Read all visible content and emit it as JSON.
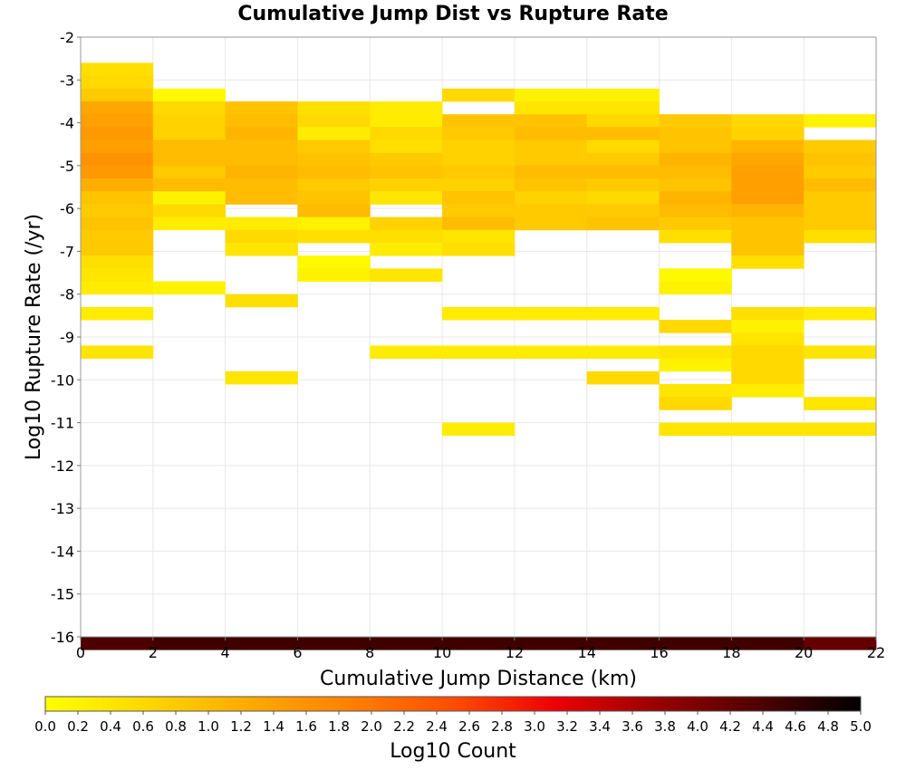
{
  "chart_data": {
    "type": "heatmap",
    "title": "Cumulative Jump Dist vs Rupture Rate",
    "xlabel": "Cumulative Jump Distance (km)",
    "ylabel": "Log10 Rupture Rate (/yr)",
    "xlim": [
      0,
      22
    ],
    "ylim": [
      -16,
      -2
    ],
    "x_ticks": [
      "0",
      "2",
      "4",
      "6",
      "8",
      "10",
      "12",
      "14",
      "16",
      "18",
      "20",
      "22"
    ],
    "y_ticks": [
      "-2",
      "-3",
      "-4",
      "-5",
      "-6",
      "-7",
      "-8",
      "-9",
      "-10",
      "-11",
      "-12",
      "-13",
      "-14",
      "-15",
      "-16"
    ],
    "x_bin_width": 2,
    "y_bin_height": 0.3,
    "grid": true,
    "colorbar": {
      "label": "Log10 Count",
      "range": [
        0,
        5
      ],
      "ticks": [
        "0.0",
        "0.2",
        "0.4",
        "0.6",
        "0.8",
        "1.0",
        "1.2",
        "1.4",
        "1.6",
        "1.8",
        "2.0",
        "2.2",
        "2.4",
        "2.6",
        "2.8",
        "3.0",
        "3.2",
        "3.4",
        "3.6",
        "3.8",
        "4.0",
        "4.2",
        "4.4",
        "4.6",
        "4.8",
        "5.0"
      ],
      "colors": [
        "#ffff00",
        "#ffd700",
        "#ffaa00",
        "#ff8000",
        "#ff4d00",
        "#ee0000",
        "#990000",
        "#500000",
        "#000000"
      ],
      "placement": "bottom"
    },
    "columns": [
      {
        "x": 0,
        "cells": [
          [
            -2.75,
            0.5
          ],
          [
            -3.05,
            0.6
          ],
          [
            -3.35,
            0.8
          ],
          [
            -3.65,
            1.3
          ],
          [
            -3.95,
            1.4
          ],
          [
            -4.25,
            1.5
          ],
          [
            -4.55,
            1.4
          ],
          [
            -4.85,
            1.6
          ],
          [
            -5.15,
            1.5
          ],
          [
            -5.45,
            1.2
          ],
          [
            -5.75,
            0.9
          ],
          [
            -6.05,
            0.8
          ],
          [
            -6.35,
            0.9
          ],
          [
            -6.65,
            0.8
          ],
          [
            -6.95,
            0.8
          ],
          [
            -7.25,
            0.5
          ],
          [
            -7.55,
            0.4
          ],
          [
            -7.85,
            0.3
          ],
          [
            -8.45,
            0.3
          ],
          [
            -9.35,
            0.4
          ],
          [
            -16.15,
            4.4
          ]
        ]
      },
      {
        "x": 2,
        "cells": [
          [
            -3.35,
            0.1
          ],
          [
            -3.65,
            0.6
          ],
          [
            -3.95,
            0.7
          ],
          [
            -4.25,
            0.7
          ],
          [
            -4.55,
            1.0
          ],
          [
            -4.85,
            1.0
          ],
          [
            -5.15,
            0.8
          ],
          [
            -5.45,
            1.0
          ],
          [
            -5.75,
            0.2
          ],
          [
            -6.05,
            0.6
          ],
          [
            -6.35,
            0.3
          ],
          [
            -7.85,
            0.2
          ],
          [
            -16.15,
            4.5
          ]
        ]
      },
      {
        "x": 4,
        "cells": [
          [
            -3.65,
            0.9
          ],
          [
            -3.95,
            1.0
          ],
          [
            -4.25,
            1.1
          ],
          [
            -4.55,
            1.0
          ],
          [
            -4.85,
            1.0
          ],
          [
            -5.15,
            1.1
          ],
          [
            -5.45,
            1.0
          ],
          [
            -5.75,
            1.0
          ],
          [
            -6.35,
            0.3
          ],
          [
            -6.65,
            0.6
          ],
          [
            -6.95,
            0.4
          ],
          [
            -8.15,
            0.5
          ],
          [
            -9.95,
            0.4
          ],
          [
            -16.15,
            4.5
          ]
        ]
      },
      {
        "x": 6,
        "cells": [
          [
            -3.65,
            0.5
          ],
          [
            -3.95,
            0.6
          ],
          [
            -4.25,
            0.3
          ],
          [
            -4.55,
            0.8
          ],
          [
            -4.85,
            0.9
          ],
          [
            -5.15,
            1.0
          ],
          [
            -5.45,
            0.8
          ],
          [
            -5.75,
            0.9
          ],
          [
            -6.05,
            1.0
          ],
          [
            -6.35,
            0.2
          ],
          [
            -6.65,
            0.5
          ],
          [
            -7.25,
            0.1
          ],
          [
            -7.55,
            0.2
          ],
          [
            -16.15,
            4.5
          ]
        ]
      },
      {
        "x": 8,
        "cells": [
          [
            -3.65,
            0.3
          ],
          [
            -3.95,
            0.3
          ],
          [
            -4.25,
            0.6
          ],
          [
            -4.55,
            0.5
          ],
          [
            -4.85,
            0.8
          ],
          [
            -5.15,
            0.9
          ],
          [
            -5.45,
            0.7
          ],
          [
            -5.75,
            0.4
          ],
          [
            -6.35,
            0.7
          ],
          [
            -6.65,
            0.5
          ],
          [
            -6.95,
            0.3
          ],
          [
            -7.55,
            0.4
          ],
          [
            -9.35,
            0.3
          ],
          [
            -16.15,
            4.5
          ]
        ]
      },
      {
        "x": 10,
        "cells": [
          [
            -3.35,
            0.6
          ],
          [
            -3.95,
            0.9
          ],
          [
            -4.25,
            0.8
          ],
          [
            -4.55,
            0.7
          ],
          [
            -4.85,
            0.7
          ],
          [
            -5.15,
            0.8
          ],
          [
            -5.45,
            0.7
          ],
          [
            -5.75,
            0.9
          ],
          [
            -6.05,
            0.8
          ],
          [
            -6.35,
            1.0
          ],
          [
            -6.65,
            0.4
          ],
          [
            -6.95,
            0.5
          ],
          [
            -8.45,
            0.3
          ],
          [
            -9.35,
            0.3
          ],
          [
            -11.15,
            0.3
          ],
          [
            -16.15,
            4.5
          ]
        ]
      },
      {
        "x": 12,
        "cells": [
          [
            -3.35,
            0.2
          ],
          [
            -3.65,
            0.4
          ],
          [
            -3.95,
            0.9
          ],
          [
            -4.25,
            1.0
          ],
          [
            -4.55,
            0.8
          ],
          [
            -4.85,
            0.8
          ],
          [
            -5.15,
            1.0
          ],
          [
            -5.45,
            0.9
          ],
          [
            -5.75,
            0.7
          ],
          [
            -6.05,
            0.8
          ],
          [
            -6.35,
            0.8
          ],
          [
            -8.45,
            0.3
          ],
          [
            -9.35,
            0.3
          ],
          [
            -16.15,
            4.5
          ]
        ]
      },
      {
        "x": 14,
        "cells": [
          [
            -3.35,
            0.2
          ],
          [
            -3.65,
            0.4
          ],
          [
            -3.95,
            0.6
          ],
          [
            -4.25,
            1.0
          ],
          [
            -4.55,
            0.6
          ],
          [
            -4.85,
            0.8
          ],
          [
            -5.15,
            1.0
          ],
          [
            -5.45,
            0.8
          ],
          [
            -5.75,
            0.6
          ],
          [
            -6.05,
            0.8
          ],
          [
            -6.35,
            0.9
          ],
          [
            -8.45,
            0.3
          ],
          [
            -9.35,
            0.3
          ],
          [
            -9.95,
            0.6
          ],
          [
            -16.15,
            4.5
          ]
        ]
      },
      {
        "x": 16,
        "cells": [
          [
            -3.95,
            0.8
          ],
          [
            -4.25,
            0.9
          ],
          [
            -4.55,
            0.9
          ],
          [
            -4.85,
            1.1
          ],
          [
            -5.15,
            1.0
          ],
          [
            -5.45,
            0.9
          ],
          [
            -5.75,
            1.1
          ],
          [
            -6.05,
            1.0
          ],
          [
            -6.35,
            0.8
          ],
          [
            -6.65,
            0.5
          ],
          [
            -7.55,
            0.1
          ],
          [
            -7.85,
            0.2
          ],
          [
            -8.75,
            0.6
          ],
          [
            -9.35,
            0.4
          ],
          [
            -9.65,
            0.2
          ],
          [
            -10.25,
            0.4
          ],
          [
            -10.55,
            0.6
          ],
          [
            -11.15,
            0.4
          ],
          [
            -16.15,
            4.5
          ]
        ]
      },
      {
        "x": 18,
        "cells": [
          [
            -3.95,
            0.6
          ],
          [
            -4.25,
            0.7
          ],
          [
            -4.55,
            1.1
          ],
          [
            -4.85,
            1.3
          ],
          [
            -5.15,
            1.4
          ],
          [
            -5.45,
            1.4
          ],
          [
            -5.75,
            1.4
          ],
          [
            -6.05,
            1.1
          ],
          [
            -6.35,
            0.9
          ],
          [
            -6.65,
            0.9
          ],
          [
            -6.95,
            0.9
          ],
          [
            -7.25,
            0.5
          ],
          [
            -8.45,
            0.5
          ],
          [
            -8.75,
            0.2
          ],
          [
            -9.05,
            0.4
          ],
          [
            -9.35,
            0.6
          ],
          [
            -9.65,
            0.6
          ],
          [
            -9.95,
            0.6
          ],
          [
            -10.25,
            0.3
          ],
          [
            -11.15,
            0.4
          ],
          [
            -16.15,
            4.5
          ]
        ]
      },
      {
        "x": 20,
        "cells": [
          [
            -3.95,
            0.2
          ],
          [
            -4.55,
            0.8
          ],
          [
            -4.85,
            0.9
          ],
          [
            -5.15,
            0.8
          ],
          [
            -5.45,
            1.0
          ],
          [
            -5.75,
            0.8
          ],
          [
            -6.05,
            0.8
          ],
          [
            -6.35,
            0.8
          ],
          [
            -6.65,
            0.5
          ],
          [
            -8.45,
            0.3
          ],
          [
            -9.35,
            0.4
          ],
          [
            -10.55,
            0.4
          ],
          [
            -11.15,
            0.4
          ],
          [
            -16.15,
            4.2
          ]
        ]
      }
    ]
  }
}
